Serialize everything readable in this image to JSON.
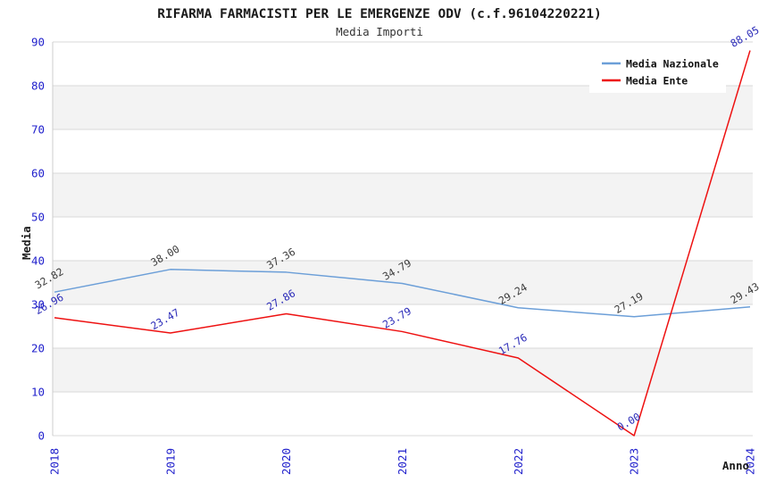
{
  "title": "RIFARMA FARMACISTI PER LE EMERGENZE ODV (c.f.96104220221)",
  "subtitle": "Media Importi",
  "chart_data": {
    "type": "line",
    "x": [
      2018,
      2019,
      2020,
      2021,
      2022,
      2023,
      2024
    ],
    "series": [
      {
        "name": "Media Nazionale",
        "color": "#6c9fd8",
        "label_color": "#3d3d3d",
        "values": [
          32.82,
          38.0,
          37.36,
          34.79,
          29.24,
          27.19,
          29.43
        ]
      },
      {
        "name": "Media Ente",
        "color": "#ee1111",
        "label_color": "#2a2ab8",
        "values": [
          26.96,
          23.47,
          27.86,
          23.79,
          17.76,
          0.0,
          88.05
        ]
      }
    ],
    "xlabel": "Anno",
    "ylabel": "Media",
    "ylim": [
      0,
      90
    ],
    "yticks": [
      0,
      10,
      20,
      30,
      40,
      50,
      60,
      70,
      80,
      90
    ],
    "grid": true,
    "legend_position": "top-right",
    "band_color": "#f3f3f3",
    "gridline_color": "#d9d9d9",
    "spine_color": "#cccccc",
    "tick_label_color": "#2121cc"
  }
}
